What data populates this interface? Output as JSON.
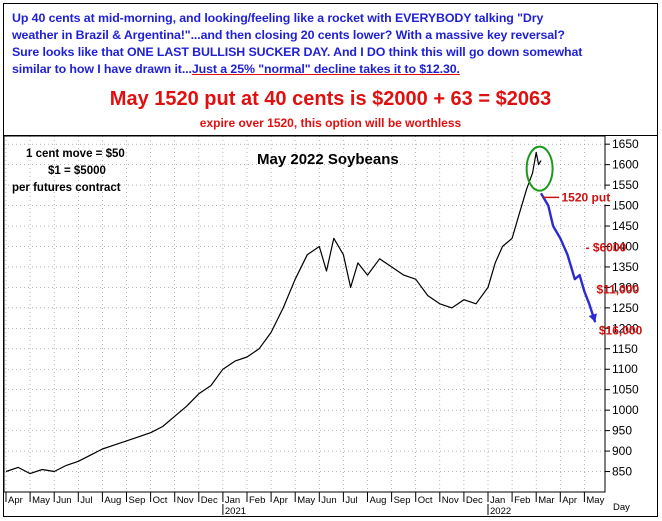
{
  "header": {
    "lines": [
      "Up 40 cents at mid-morning, and looking/feeling like a rocket with EVERYBODY talking \"Dry",
      "weather in Brazil & Argentina!\"...and then closing 20 cents lower? With a massive key reversal?",
      "Sure looks like that ONE LAST BULLISH SUCKER DAY. And I DO think this will go down somewhat"
    ],
    "line4_prefix": "similar to how I have drawn it...",
    "line4_underlined": "Just a 25% \"normal\" decline takes it to $12.30.",
    "put_line": "May 1520 put at 40 cents is $2000 + 63 = $2063",
    "expire_line": "expire over 1520, this option will be worthless",
    "text_color": "#1f1fd6",
    "accent_color": "#e01010"
  },
  "chart_data": {
    "type": "line",
    "title": "May 2022 Soybeans",
    "info_lines": [
      "1 cent move = $50",
      "$1 = $5000",
      "per futures contract"
    ],
    "xlabel": "Day",
    "ylim": [
      800,
      1670
    ],
    "yticks": [
      850,
      900,
      950,
      1000,
      1050,
      1100,
      1150,
      1200,
      1250,
      1300,
      1350,
      1400,
      1450,
      1500,
      1550,
      1600,
      1650
    ],
    "month_labels": [
      "Apr",
      "May",
      "Jun",
      "Jul",
      "Aug",
      "Sep",
      "Oct",
      "Nov",
      "Dec",
      "Jan",
      "Feb",
      "Apr",
      "May",
      "Jun",
      "Jul",
      "Aug",
      "Sep",
      "Oct",
      "Nov",
      "Dec",
      "Jan",
      "Feb",
      "Mar",
      "Apr",
      "May"
    ],
    "year_labels": [
      {
        "label": "2021",
        "month_index": 9
      },
      {
        "label": "2022",
        "month_index": 20
      }
    ],
    "series": [
      {
        "color": "#000000",
        "points": [
          [
            0,
            850
          ],
          [
            0.5,
            860
          ],
          [
            1,
            845
          ],
          [
            1.5,
            855
          ],
          [
            2,
            850
          ],
          [
            2.5,
            865
          ],
          [
            3,
            875
          ],
          [
            3.5,
            890
          ],
          [
            4,
            905
          ],
          [
            4.5,
            915
          ],
          [
            5,
            925
          ],
          [
            5.5,
            935
          ],
          [
            6,
            945
          ],
          [
            6.5,
            960
          ],
          [
            7,
            985
          ],
          [
            7.5,
            1010
          ],
          [
            8,
            1040
          ],
          [
            8.5,
            1060
          ],
          [
            9,
            1100
          ],
          [
            9.5,
            1120
          ],
          [
            10,
            1130
          ],
          [
            10.5,
            1150
          ],
          [
            11,
            1190
          ],
          [
            11.5,
            1250
          ],
          [
            12,
            1320
          ],
          [
            12.5,
            1380
          ],
          [
            13,
            1400
          ],
          [
            13.3,
            1340
          ],
          [
            13.6,
            1420
          ],
          [
            14,
            1380
          ],
          [
            14.3,
            1300
          ],
          [
            14.6,
            1360
          ],
          [
            15,
            1330
          ],
          [
            15.5,
            1370
          ],
          [
            16,
            1350
          ],
          [
            16.5,
            1330
          ],
          [
            17,
            1320
          ],
          [
            17.5,
            1280
          ],
          [
            18,
            1260
          ],
          [
            18.5,
            1250
          ],
          [
            19,
            1270
          ],
          [
            19.5,
            1260
          ],
          [
            20,
            1300
          ],
          [
            20.3,
            1360
          ],
          [
            20.6,
            1400
          ],
          [
            21,
            1420
          ],
          [
            21.3,
            1480
          ],
          [
            21.6,
            1540
          ],
          [
            21.85,
            1580
          ],
          [
            22,
            1630
          ],
          [
            22.1,
            1600
          ],
          [
            22.2,
            1610
          ]
        ]
      },
      {
        "name": "projection",
        "color": "#2a2ad0",
        "points": [
          [
            22.2,
            1530
          ],
          [
            22.5,
            1500
          ],
          [
            22.7,
            1450
          ],
          [
            23.0,
            1420
          ],
          [
            23.3,
            1380
          ],
          [
            23.6,
            1320
          ],
          [
            23.8,
            1330
          ],
          [
            24.0,
            1290
          ],
          [
            24.2,
            1260
          ],
          [
            24.45,
            1215
          ]
        ]
      }
    ],
    "circle": {
      "x": 22.1,
      "y": 1600,
      "color": "#1a9a1a"
    },
    "put_level": {
      "value": 1520,
      "label": "1520 put",
      "color": "#d01010"
    },
    "annotations": [
      {
        "text": "- $6000",
        "x": 24.05,
        "y": 1398
      },
      {
        "text": "$11,000",
        "x": 24.5,
        "y": 1295
      },
      {
        "text": "$16,000",
        "x": 24.6,
        "y": 1195
      }
    ]
  }
}
